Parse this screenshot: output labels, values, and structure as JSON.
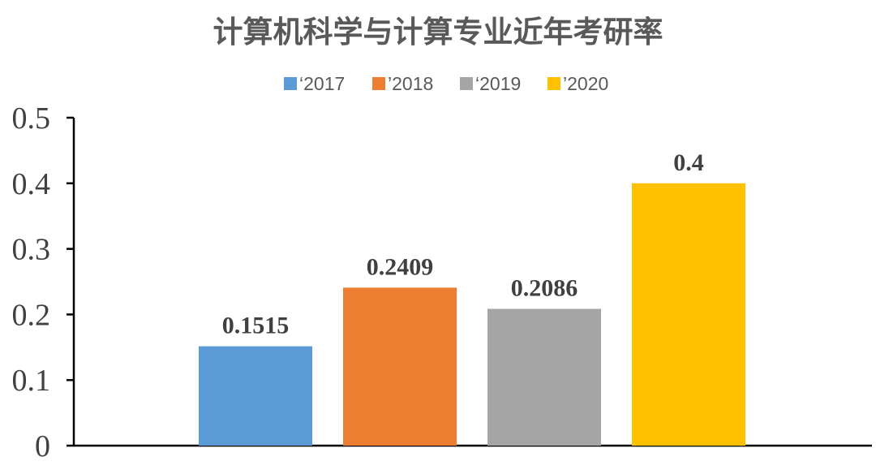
{
  "chart_data": {
    "type": "bar",
    "title": "计算机科学与计算专业近年考研率",
    "categories": [
      "‘2017",
      "’2018",
      "‘2019",
      "’2020"
    ],
    "values": [
      0.1515,
      0.2409,
      0.2086,
      0.4
    ],
    "data_labels": [
      "0.1515",
      "0.2409",
      "0.2086",
      "0.4"
    ],
    "colors": [
      "#5B9BD5",
      "#ED7D31",
      "#A5A5A5",
      "#FFC000"
    ],
    "ylim": [
      0,
      0.5
    ],
    "yticks": [
      "0",
      "0.1",
      "0.2",
      "0.3",
      "0.4",
      "0.5"
    ],
    "xlabel": "",
    "ylabel": "",
    "legend_position": "top",
    "grid": false
  }
}
